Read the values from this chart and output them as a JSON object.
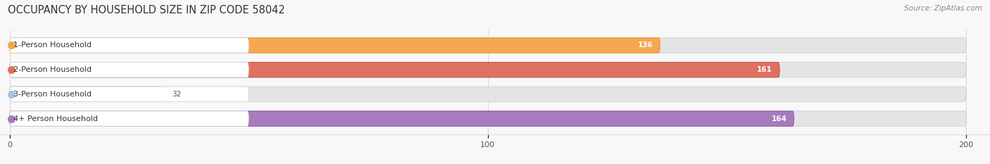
{
  "title": "OCCUPANCY BY HOUSEHOLD SIZE IN ZIP CODE 58042",
  "source": "Source: ZipAtlas.com",
  "categories": [
    "1-Person Household",
    "2-Person Household",
    "3-Person Household",
    "4+ Person Household"
  ],
  "values": [
    136,
    161,
    32,
    164
  ],
  "bar_colors": [
    "#F5A850",
    "#E07060",
    "#A8C4E8",
    "#A87ABE"
  ],
  "accent_colors": [
    "#E89030",
    "#C04848",
    "#7098C8",
    "#8050A0"
  ],
  "label_colors": [
    "white",
    "white",
    "#555555",
    "white"
  ],
  "xlim": [
    0,
    200
  ],
  "xticks": [
    0,
    100,
    200
  ],
  "background_color": "#f8f8f8",
  "bar_bg_color": "#e4e4e4",
  "white_label_bg": "#ffffff",
  "title_fontsize": 10.5,
  "source_fontsize": 7.5,
  "tick_fontsize": 8,
  "label_fontsize": 8,
  "value_fontsize": 7.5,
  "bar_height": 0.62,
  "figsize": [
    14.06,
    2.33
  ],
  "dpi": 100
}
